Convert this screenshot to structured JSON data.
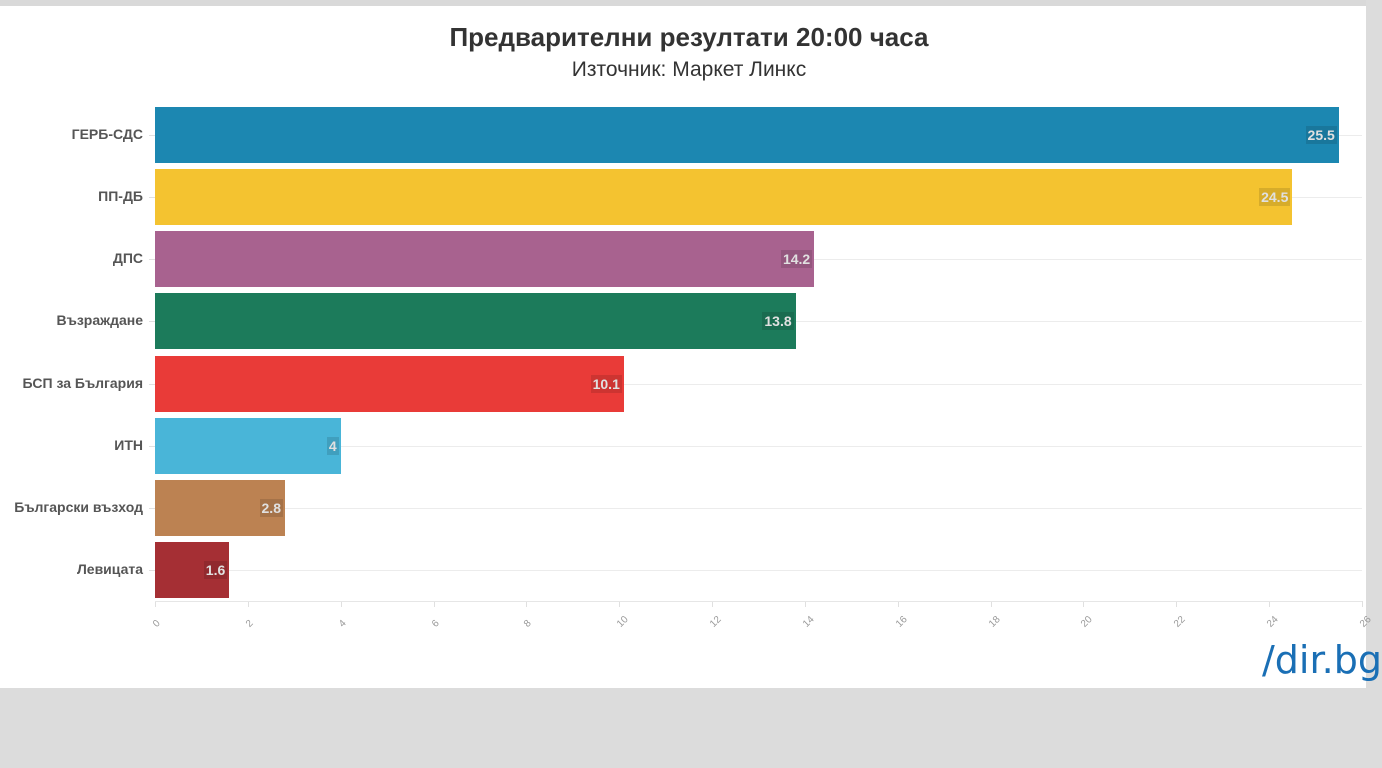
{
  "header": {
    "title": "Предварителни резултати 20:00 часа",
    "subtitle": "Източник: Маркет Линкс"
  },
  "logo": {
    "text": "/dir.bg",
    "color": "#1a6fb5"
  },
  "chart_data": {
    "type": "bar",
    "orientation": "horizontal",
    "title": "Предварителни резултати 20:00 часа",
    "subtitle": "Източник: Маркет Линкс",
    "xlabel": "",
    "ylabel": "",
    "xlim": [
      0,
      26
    ],
    "grid": true,
    "legend": "none",
    "categories": [
      "ГЕРБ-СДС",
      "ПП-ДБ",
      "ДПС",
      "Възраждане",
      "БСП за България",
      "ИТН",
      "Български възход",
      "Левицата"
    ],
    "values": [
      25.5,
      24.5,
      14.2,
      13.8,
      10.1,
      4,
      2.8,
      1.6
    ],
    "value_labels": [
      "25.5",
      "24.5",
      "14.2",
      "13.8",
      "10.1",
      "4",
      "2.8",
      "1.6"
    ],
    "colors": [
      "#1c87b1",
      "#f4c330",
      "#a8628f",
      "#1c7b5b",
      "#e93b38",
      "#49b5d8",
      "#bc8252",
      "#a52f34"
    ],
    "x_ticks": [
      "0",
      "2",
      "4",
      "6",
      "8",
      "10",
      "12",
      "14",
      "16",
      "18",
      "20",
      "22",
      "24",
      "26"
    ]
  }
}
